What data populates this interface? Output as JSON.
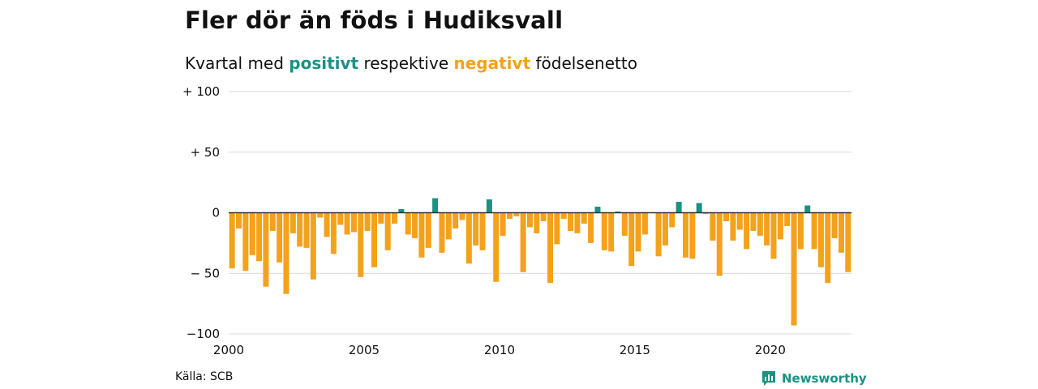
{
  "header": {
    "title": "Fler dör än föds i Hudiksvall",
    "subtitle_prefix": "Kvartal med",
    "subtitle_positive": "positivt",
    "subtitle_middle": "respektive",
    "subtitle_negative": "negativt",
    "subtitle_suffix": "födelsenetto"
  },
  "footer": {
    "source": "Källa: SCB",
    "brand": "Newsworthy"
  },
  "colors": {
    "positive": "#1a9283",
    "negative": "#f4a11c",
    "grid": "#d9d9d9",
    "axis_text": "#111111"
  },
  "chart_data": {
    "type": "bar",
    "x_start": 2000,
    "x_step": 0.25,
    "xlim": [
      2000,
      2023
    ],
    "ylim": [
      -100,
      100
    ],
    "yticks": [
      100,
      50,
      0,
      -50,
      -100
    ],
    "ytick_labels": [
      "+ 100",
      "+  50",
      "0",
      "− 50",
      "−100"
    ],
    "xticks": [
      2000,
      2005,
      2010,
      2015,
      2020
    ],
    "xtick_labels": [
      "2000",
      "2005",
      "2010",
      "2015",
      "2020"
    ],
    "grid": true,
    "values": [
      -46,
      -13,
      -48,
      -35,
      -40,
      -61,
      -15,
      -41,
      -67,
      -17,
      -28,
      -29,
      -55,
      -4,
      -20,
      -34,
      -10,
      -18,
      -16,
      -53,
      -15,
      -45,
      -9,
      -31,
      -9,
      3,
      -18,
      -21,
      -37,
      -29,
      12,
      -33,
      -22,
      -13,
      -6,
      -42,
      -27,
      -31,
      11,
      -57,
      -19,
      -5,
      -3,
      -49,
      -12,
      -17,
      -7,
      -58,
      -26,
      -5,
      -15,
      -17,
      -9,
      -25,
      5,
      -31,
      -32,
      1,
      -19,
      -44,
      -32,
      -18,
      0,
      -36,
      -27,
      -12,
      9,
      -37,
      -38,
      8,
      -1,
      -23,
      -52,
      -7,
      -23,
      -14,
      -30,
      -15,
      -19,
      -27,
      -38,
      -22,
      -11,
      -93,
      -30,
      6,
      -30,
      -45,
      -58,
      -21,
      -33,
      -49
    ]
  }
}
